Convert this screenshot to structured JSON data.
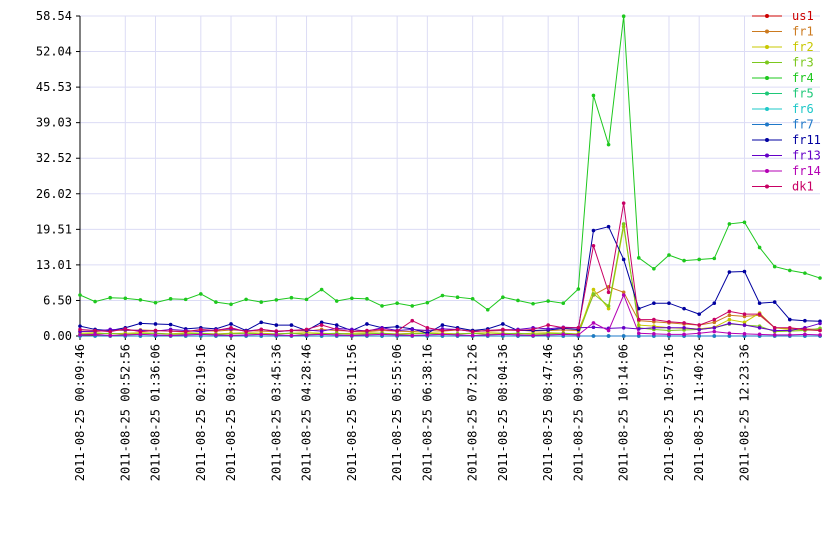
{
  "chart_data": {
    "type": "line",
    "categories": [
      "2011-08-25 00:09:46",
      null,
      null,
      "2011-08-25 00:52:56",
      null,
      "2011-08-25 01:36:06",
      null,
      null,
      "2011-08-25 02:19:16",
      null,
      "2011-08-25 03:02:26",
      null,
      null,
      "2011-08-25 03:45:36",
      null,
      "2011-08-25 04:28:46",
      null,
      null,
      "2011-08-25 05:11:56",
      null,
      null,
      "2011-08-25 05:55:06",
      null,
      "2011-08-25 06:38:16",
      null,
      null,
      "2011-08-25 07:21:26",
      null,
      "2011-08-25 08:04:36",
      null,
      null,
      "2011-08-25 08:47:46",
      null,
      "2011-08-25 09:30:56",
      null,
      null,
      "2011-08-25 10:14:06",
      null,
      null,
      "2011-08-25 10:57:16",
      null,
      "2011-08-25 11:40:26",
      null,
      null,
      "2011-08-25 12:23:36",
      null,
      null,
      null,
      null,
      null
    ],
    "ylim": [
      0,
      58.54
    ],
    "yticks": [
      {
        "value": 0,
        "label": "0.00"
      },
      {
        "value": 6.5,
        "label": "6.50"
      },
      13.01,
      19.51,
      26.02,
      32.52,
      39.03,
      45.53,
      52.04,
      58.54
    ],
    "grid": true,
    "legend": "right",
    "series": [
      {
        "name": "us1",
        "color": "#cc0000",
        "values": [
          0.2,
          0.1,
          0,
          0,
          0,
          0,
          0,
          0,
          0,
          0,
          0,
          0,
          0,
          0,
          0,
          0,
          0,
          0,
          0,
          0,
          0,
          0,
          0,
          0,
          0,
          0,
          0,
          0,
          0,
          0,
          0,
          0,
          0,
          0,
          0,
          0,
          0,
          0,
          0,
          0,
          0,
          0,
          0,
          0,
          0,
          0,
          0,
          0,
          0,
          0
        ]
      },
      {
        "name": "fr1",
        "color": "#cc7a1f",
        "values": [
          0.9,
          0.8,
          1.1,
          1.0,
          1.1,
          1.0,
          0.9,
          0.8,
          1.0,
          0.9,
          1.1,
          1.0,
          0.9,
          0.8,
          1.0,
          0.9,
          1.2,
          1.0,
          0.9,
          0.8,
          1.0,
          0.9,
          0.8,
          1.0,
          0.9,
          1.1,
          1.0,
          0.9,
          1.0,
          1.1,
          0.9,
          1.0,
          1.1,
          1.0,
          7.5,
          9,
          8,
          2.8,
          2.6,
          2.4,
          2.2,
          2.0,
          2.5,
          3.8,
          3.6,
          3.8,
          1.5,
          1.4,
          1.3,
          1.2
        ]
      },
      {
        "name": "fr2",
        "color": "#c8c800",
        "values": [
          0.5,
          0.6,
          0.4,
          0.5,
          0.6,
          0.5,
          0.4,
          0.6,
          0.5,
          0.4,
          0.5,
          0.6,
          0.5,
          0.4,
          0.5,
          0.6,
          0.5,
          0.4,
          0.5,
          0.6,
          0.5,
          0.4,
          0.5,
          0.6,
          0.5,
          0.4,
          0.5,
          0.6,
          0.5,
          0.4,
          0.5,
          0.6,
          0.5,
          0.4,
          8.5,
          5,
          20,
          2,
          1.8,
          1.5,
          1.4,
          1.3,
          1.6,
          3,
          2.5,
          4.2,
          1.5,
          1.2,
          1.1,
          1.0
        ]
      },
      {
        "name": "fr3",
        "color": "#7cc81e",
        "values": [
          0.3,
          0.4,
          0.5,
          0.3,
          0.4,
          0.5,
          0.3,
          0.4,
          0.5,
          0.3,
          0.4,
          0.5,
          0.3,
          0.4,
          0.5,
          0.3,
          0.4,
          0.5,
          0.3,
          0.4,
          0.5,
          0.3,
          0.4,
          0.5,
          0.3,
          0.4,
          0.5,
          0.3,
          0.4,
          0.5,
          0.3,
          0.4,
          0.5,
          0.3,
          7.7,
          5.5,
          20.5,
          1.5,
          1.2,
          1.0,
          1.1,
          1.2,
          1.5,
          2.2,
          2.0,
          1.8,
          0.8,
          0.9,
          1.0,
          1.4
        ]
      },
      {
        "name": "fr4",
        "color": "#1ec81e",
        "values": [
          7.5,
          6.3,
          7,
          6.9,
          6.6,
          6.1,
          6.8,
          6.7,
          7.7,
          6.2,
          5.8,
          6.7,
          6.2,
          6.6,
          7,
          6.7,
          8.5,
          6.4,
          6.9,
          6.8,
          5.5,
          6,
          5.5,
          6.1,
          7.4,
          7.1,
          6.8,
          4.8,
          7.1,
          6.5,
          5.9,
          6.4,
          6.0,
          8.6,
          44,
          35,
          58.5,
          14.3,
          12.3,
          14.8,
          13.8,
          14,
          14.2,
          20.5,
          20.8,
          16.2,
          12.7,
          12,
          11.5,
          10.6
        ]
      },
      {
        "name": "fr5",
        "color": "#1ec878",
        "values": [
          0,
          0,
          0,
          0,
          0,
          0,
          0,
          0,
          0,
          0,
          0,
          0,
          0,
          0,
          0,
          0,
          0,
          0,
          0,
          0,
          0,
          0,
          0,
          0,
          0,
          0,
          0,
          0,
          0,
          0,
          0,
          0,
          0,
          0,
          0,
          0,
          0,
          0,
          0,
          0,
          0,
          0,
          0,
          0,
          0,
          0,
          0,
          0,
          0,
          0
        ]
      },
      {
        "name": "fr6",
        "color": "#1ec8c8",
        "values": [
          0,
          0,
          0,
          0,
          0,
          0,
          0,
          0,
          0,
          0,
          0,
          0,
          0,
          0,
          0,
          0,
          0,
          0,
          0,
          0,
          0,
          0,
          0,
          0,
          0,
          0,
          0,
          0,
          0,
          0,
          0,
          0,
          0,
          0,
          0,
          0,
          0,
          0,
          0,
          0,
          0,
          0,
          0,
          0,
          0,
          0,
          0,
          0,
          0,
          0
        ]
      },
      {
        "name": "fr7",
        "color": "#1e78c8",
        "values": [
          0,
          0,
          0,
          0,
          0,
          0,
          0,
          0,
          0,
          0,
          0,
          0,
          0,
          0,
          0,
          0,
          0,
          0,
          0,
          0,
          0,
          0,
          0,
          0,
          0,
          0,
          0,
          0,
          0,
          0,
          0,
          0,
          0,
          0,
          0,
          0,
          0,
          0,
          0,
          0,
          0,
          0,
          0,
          0,
          0,
          0,
          0,
          0,
          0,
          0
        ]
      },
      {
        "name": "fr11",
        "color": "#0000a0",
        "values": [
          1.8,
          1.2,
          1.0,
          1.5,
          2.3,
          2.2,
          2.1,
          1.3,
          1.5,
          1.3,
          2.2,
          1.0,
          2.5,
          2.0,
          2.0,
          1.0,
          2.5,
          2.0,
          1.0,
          2.2,
          1.5,
          1.7,
          1.3,
          0.5,
          2.0,
          1.5,
          1.0,
          1.3,
          2.2,
          1.0,
          1.0,
          1.1,
          1.4,
          1.2,
          19.3,
          20,
          14,
          5,
          6,
          6,
          5,
          4,
          6,
          11.7,
          11.8,
          6,
          6.2,
          3,
          2.8,
          2.7
        ]
      },
      {
        "name": "fr13",
        "color": "#6400c8",
        "values": [
          0.8,
          0.9,
          1.2,
          1.1,
          1.0,
          0.9,
          1.2,
          1.0,
          0.8,
          1.1,
          1.3,
          0.9,
          1.2,
          0.8,
          1.0,
          1.1,
          0.9,
          1.4,
          1.2,
          0.9,
          1.5,
          1.0,
          1.2,
          1.0,
          1.3,
          1.2,
          0.8,
          1.0,
          1.1,
          1.2,
          1.5,
          1.3,
          1.6,
          1.5,
          1.6,
          1.4,
          1.5,
          1.3,
          1.5,
          1.5,
          1.5,
          1.2,
          1.5,
          2.3,
          2.0,
          1.5,
          1.0,
          1.0,
          1.5,
          2.3
        ]
      },
      {
        "name": "fr14",
        "color": "#b400b4",
        "values": [
          0.2,
          0.3,
          0.1,
          0.2,
          0.3,
          0.2,
          0.1,
          0.2,
          0.3,
          0.2,
          0.1,
          0.2,
          0.3,
          0.2,
          0.1,
          0.2,
          0.3,
          0.2,
          0.1,
          0.2,
          0.3,
          0.2,
          0.1,
          0.2,
          0.3,
          0.2,
          0.1,
          0.2,
          0.3,
          0.2,
          0.1,
          0.2,
          0.3,
          0.2,
          2.4,
          1.0,
          7.5,
          0.5,
          0.4,
          0.3,
          0.3,
          0.5,
          0.8,
          0.5,
          0.4,
          0.3,
          0.2,
          0.2,
          0.3,
          0.2
        ]
      },
      {
        "name": "dk1",
        "color": "#c80064",
        "values": [
          1.2,
          1.0,
          0.8,
          1.3,
          0.8,
          1.0,
          0.9,
          0.8,
          1.2,
          1.0,
          1.5,
          0.8,
          1.2,
          0.9,
          1.0,
          1.2,
          2.0,
          1.2,
          0.8,
          1.0,
          1.2,
          0.9,
          2.8,
          1.5,
          1.0,
          1.2,
          0.8,
          1.0,
          1.2,
          1.0,
          1.2,
          2.0,
          1.5,
          1.5,
          16.5,
          8,
          24.3,
          3,
          3,
          2.6,
          2.4,
          2,
          3,
          4.5,
          4,
          4,
          1.5,
          1.5,
          1.2,
          1.0
        ]
      }
    ]
  }
}
